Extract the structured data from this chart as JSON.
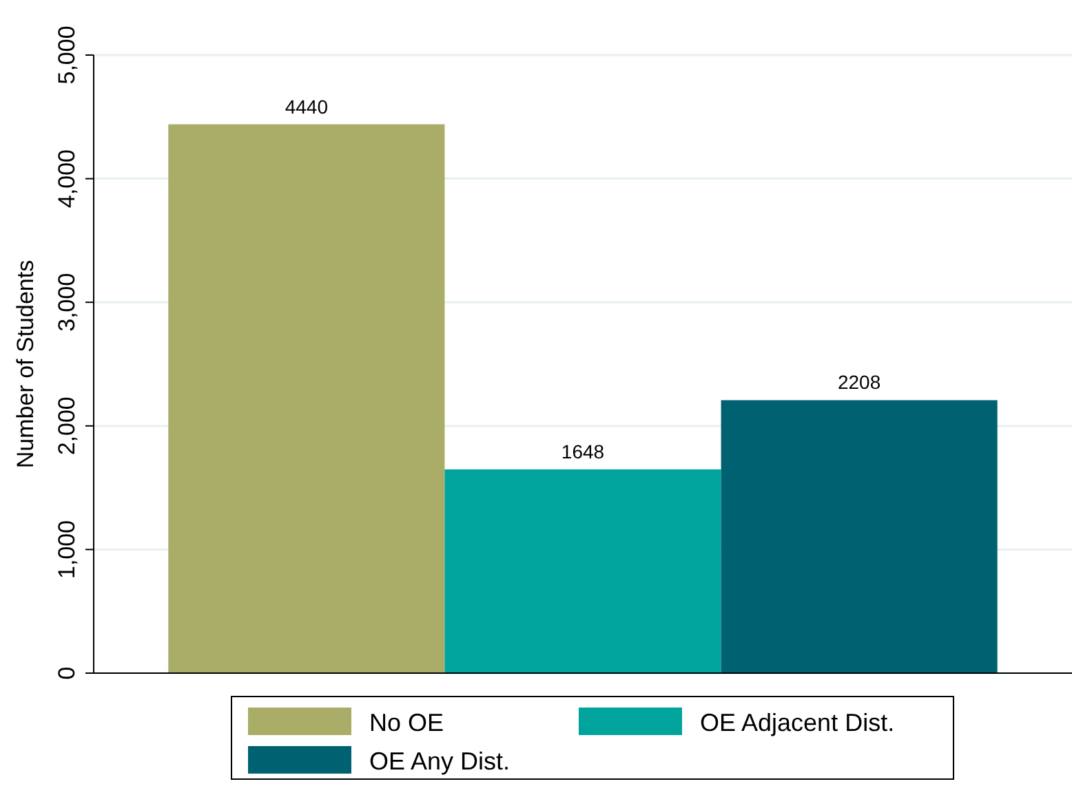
{
  "chart_data": {
    "type": "bar",
    "ylabel": "Number of Students",
    "categories": [
      null
    ],
    "series": [
      {
        "name": "No OE",
        "color": "#a9ad67",
        "values": [
          4440
        ]
      },
      {
        "name": "OE Adjacent Dist.",
        "color": "#00a49c",
        "values": [
          1648
        ]
      },
      {
        "name": "OE Any Dist.",
        "color": "#006270",
        "values": [
          2208
        ]
      }
    ],
    "ylim": [
      0,
      5000
    ],
    "yticks": [
      0,
      {
        "value": 1000,
        "label": "1,000"
      },
      {
        "value": 2000,
        "label": "2,000"
      },
      {
        "value": 3000,
        "label": "3,000"
      },
      {
        "value": 4000,
        "label": "4,000"
      },
      {
        "value": 5000,
        "label": "5,000"
      }
    ],
    "grid": "y",
    "legend": "bottom",
    "data_labels": true
  }
}
